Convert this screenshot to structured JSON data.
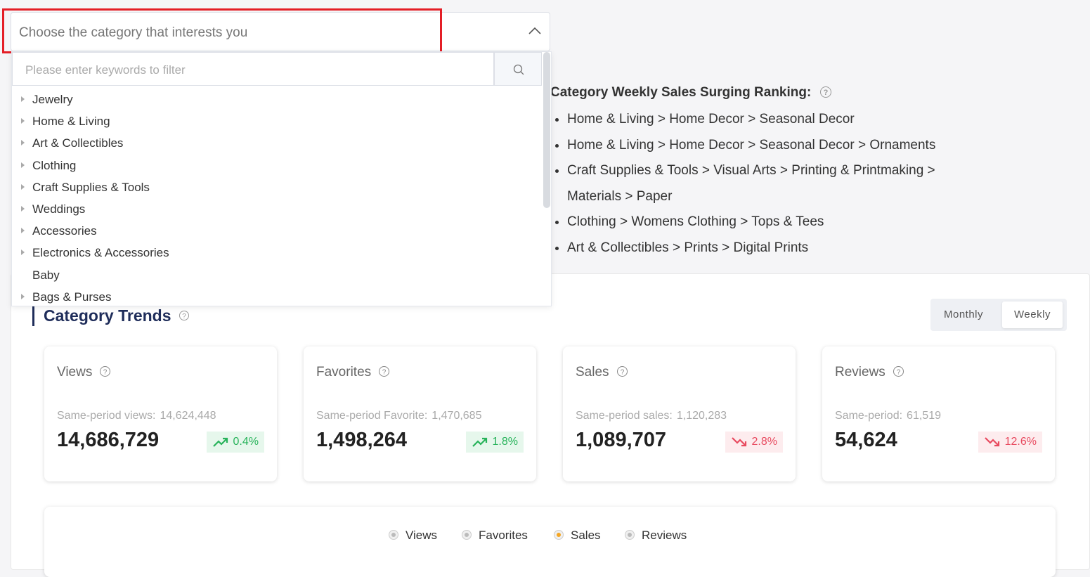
{
  "select": {
    "placeholder": "Choose the category that interests you"
  },
  "dropdown": {
    "filter_placeholder": "Please enter keywords to filter",
    "items": [
      {
        "label": "Jewelry",
        "has_children": true
      },
      {
        "label": "Home & Living",
        "has_children": true
      },
      {
        "label": "Art & Collectibles",
        "has_children": true
      },
      {
        "label": "Clothing",
        "has_children": true
      },
      {
        "label": "Craft Supplies & Tools",
        "has_children": true
      },
      {
        "label": "Weddings",
        "has_children": true
      },
      {
        "label": "Accessories",
        "has_children": true
      },
      {
        "label": "Electronics & Accessories",
        "has_children": true
      },
      {
        "label": "Baby",
        "has_children": false
      },
      {
        "label": "Bags & Purses",
        "has_children": true
      }
    ]
  },
  "ranking": {
    "title": "Category Weekly Sales Surging Ranking:",
    "items": [
      "Home & Living > Home Decor > Seasonal Decor",
      "Home & Living > Home Decor > Seasonal Decor > Ornaments",
      "Craft Supplies & Tools > Visual Arts > Printing & Printmaking > Materials > Paper",
      "Clothing > Womens Clothing > Tops & Tees",
      "Art & Collectibles > Prints > Digital Prints"
    ]
  },
  "trends": {
    "title": "Category Trends",
    "toggle": [
      "Monthly",
      "Weekly"
    ],
    "active_toggle": 1
  },
  "cards": [
    {
      "title": "Views",
      "same_period_label": "Same-period views:",
      "same_period_value": "14,624,448",
      "value": "14,686,729",
      "change": "0.4%",
      "direction": "up"
    },
    {
      "title": "Favorites",
      "same_period_label": "Same-period Favorite:",
      "same_period_value": "1,470,685",
      "value": "1,498,264",
      "change": "1.8%",
      "direction": "up"
    },
    {
      "title": "Sales",
      "same_period_label": "Same-period sales:",
      "same_period_value": "1,120,283",
      "value": "1,089,707",
      "change": "2.8%",
      "direction": "down"
    },
    {
      "title": "Reviews",
      "same_period_label": "Same-period:",
      "same_period_value": "61,519",
      "value": "54,624",
      "change": "12.6%",
      "direction": "down"
    }
  ],
  "legend": {
    "items": [
      "Views",
      "Favorites",
      "Sales",
      "Reviews"
    ],
    "selected": 2
  }
}
